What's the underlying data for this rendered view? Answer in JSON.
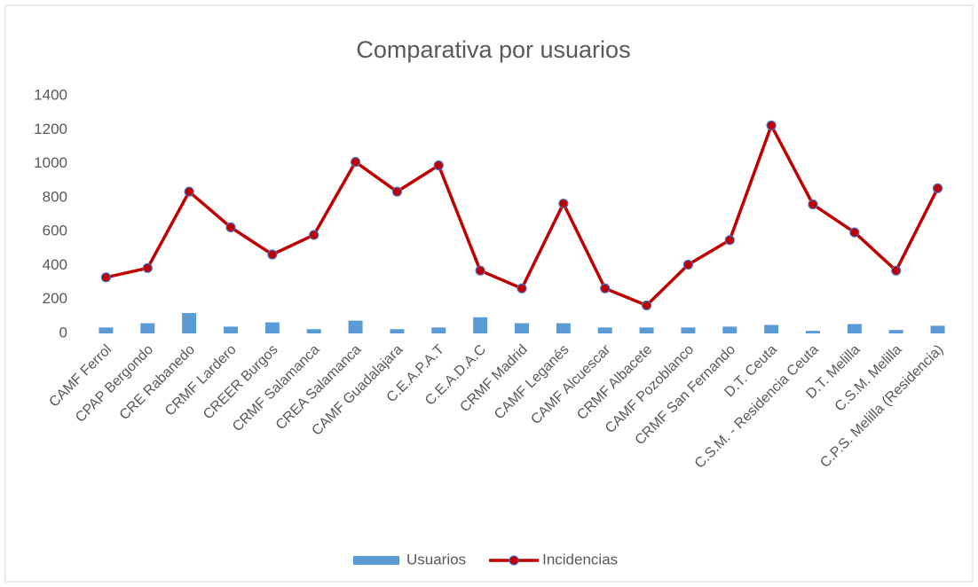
{
  "chart_data": {
    "type": "bar-line",
    "title": "Comparativa por usuarios",
    "categories": [
      "CAMF Ferrol",
      "CPAP Bergondo",
      "CRE Rabanedo",
      "CRMF  Lardero",
      "CREER Burgos",
      "CRMF Salamanca",
      "CREA Salamanca",
      "CAMF  Guadalajara",
      "C.E.A.P.A.T",
      "C.E.A.D.A.C",
      "CRMF  Madrid",
      "CAMF  Leganés",
      "CAMF  Alcuescar",
      "CRMF  Albacete",
      "CAMF  Pozoblanco",
      "CRMF San Fernando",
      "D.T.  Ceuta",
      "C.S.M. - Residencia Ceuta",
      "D.T.   Melilla",
      "C.S.M.   Melilla",
      "C.P.S. Melilla (Residencia)"
    ],
    "series": [
      {
        "name": "Usuarios",
        "type": "bar",
        "color": "#5b9bd5",
        "values": [
          35,
          60,
          120,
          40,
          65,
          25,
          75,
          25,
          35,
          95,
          60,
          60,
          35,
          35,
          35,
          40,
          50,
          15,
          55,
          20,
          45
        ]
      },
      {
        "name": "Incidencias",
        "type": "line",
        "color": "#c00000",
        "marker_edge_color": "#4472c4",
        "values": [
          330,
          385,
          835,
          625,
          465,
          580,
          1010,
          835,
          990,
          370,
          265,
          765,
          265,
          165,
          405,
          550,
          1225,
          760,
          595,
          370,
          855
        ]
      }
    ],
    "ylim": [
      0,
      1400
    ],
    "yticks": [
      0,
      200,
      400,
      600,
      800,
      1000,
      1200,
      1400
    ],
    "grid": false,
    "legend": "bottom"
  }
}
